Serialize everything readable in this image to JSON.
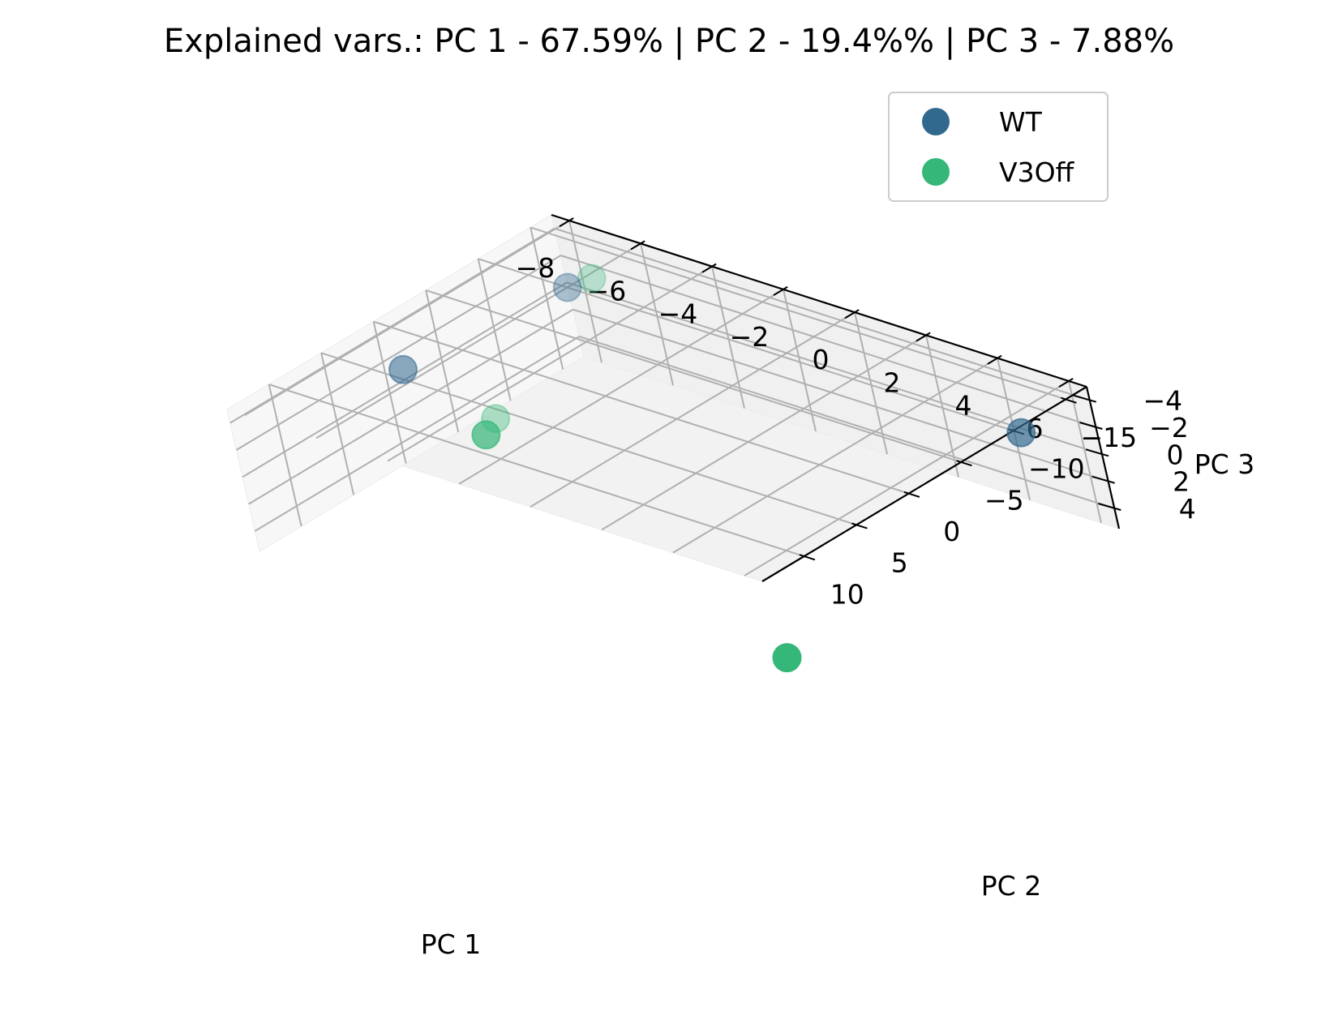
{
  "chart_data": {
    "type": "scatter",
    "projection": "3d",
    "title": "Explained vars.: PC 1 - 67.59% | PC 2 -  19.4%% | PC 3 -  7.88%",
    "xlabel": "PC 1",
    "ylabel": "PC 2",
    "zlabel": "PC 3",
    "x_ticks": [
      10,
      5,
      0,
      -5,
      -10,
      -15
    ],
    "x_tick_labels": [
      "10",
      "5",
      "0",
      "−5",
      "−10",
      "−15"
    ],
    "y_ticks": [
      -8,
      -6,
      -4,
      -2,
      0,
      2,
      4,
      6
    ],
    "y_tick_labels": [
      "−8",
      "−6",
      "−4",
      "−2",
      "0",
      "2",
      "4",
      "6"
    ],
    "z_ticks": [
      4,
      2,
      0,
      -2,
      -4
    ],
    "z_tick_labels": [
      "4",
      "2",
      "0",
      "−2",
      "−4"
    ],
    "xlim": [
      -17,
      14
    ],
    "ylim": [
      -8.5,
      6.5
    ],
    "zlim": [
      -5,
      5.5
    ],
    "grid": true,
    "legend_position": "top-right",
    "series": [
      {
        "name": "WT",
        "color": "#31688e",
        "points": [
          {
            "x": -12,
            "y": 6,
            "z": -3.5
          },
          {
            "x": 4,
            "y": -6.5,
            "z": -5
          },
          {
            "x": -10,
            "y": -6,
            "z": -5
          }
        ]
      },
      {
        "name": "V3Off",
        "color": "#35b779",
        "points": [
          {
            "x": 12,
            "y": 6,
            "z": 2
          },
          {
            "x": -7,
            "y": -8,
            "z": 5
          },
          {
            "x": -15,
            "y": -7,
            "z": -2.5
          },
          {
            "x": 8,
            "y": -3,
            "z": -5
          }
        ]
      }
    ]
  }
}
